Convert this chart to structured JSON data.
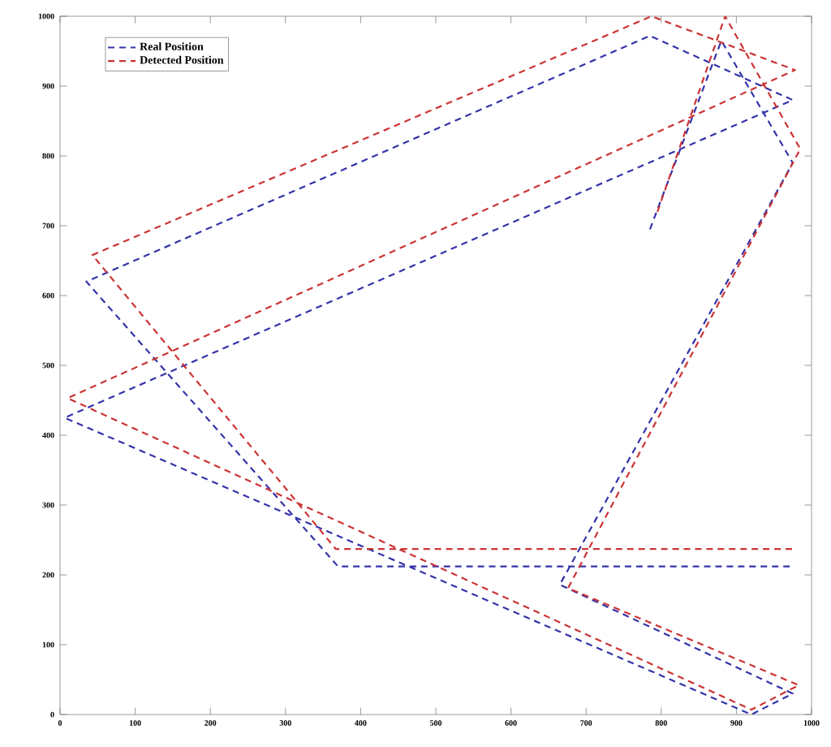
{
  "chart_data": {
    "type": "line",
    "xlim": [
      0,
      1000
    ],
    "ylim": [
      0,
      1000
    ],
    "xticks": [
      0,
      100,
      200,
      300,
      400,
      500,
      600,
      700,
      800,
      900,
      1000
    ],
    "yticks": [
      0,
      100,
      200,
      300,
      400,
      500,
      600,
      700,
      800,
      900,
      1000
    ],
    "grid": false,
    "legend": "top left",
    "marker": "none",
    "line_style": "dashed",
    "series": [
      {
        "name": "Real Position",
        "color": "#3333aa",
        "x": [
          785,
          880,
          975,
          665,
          975,
          920,
          6,
          975,
          785,
          35,
          370,
          975
        ],
        "values": [
          695,
          965,
          790,
          186,
          30,
          0,
          425,
          880,
          972,
          620,
          212,
          212
        ]
      },
      {
        "name": "Detected Position",
        "color": "#cc3333",
        "x": [
          795,
          885,
          985,
          676,
          983,
          920,
          10,
          978,
          787,
          43,
          367,
          980
        ],
        "values": [
          720,
          1000,
          810,
          181,
          42,
          7,
          453,
          923,
          1000,
          658,
          237,
          237
        ]
      }
    ]
  }
}
